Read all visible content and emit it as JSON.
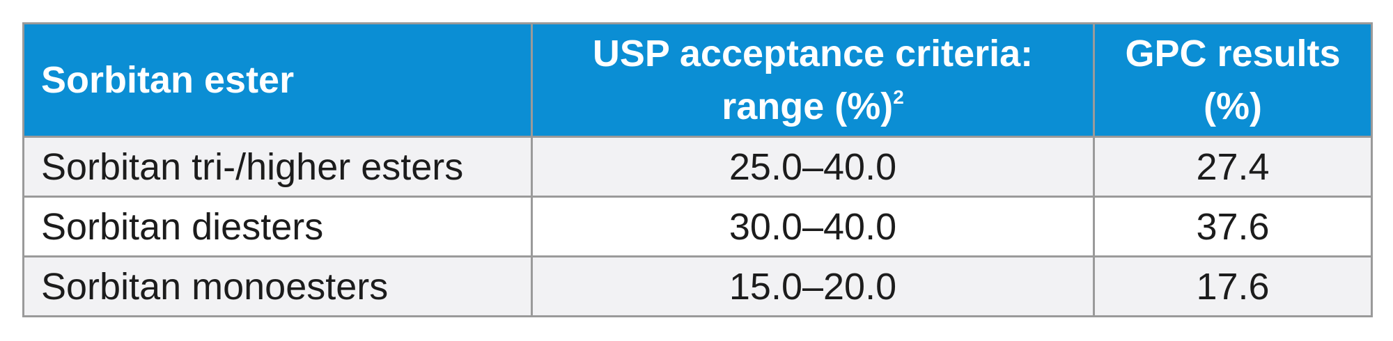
{
  "table": {
    "headers": [
      {
        "text": "Sorbitan ester",
        "sup": ""
      },
      {
        "text": "USP acceptance criteria: range (%)",
        "sup": "2"
      },
      {
        "text": "GPC results (%)",
        "sup": ""
      }
    ],
    "rows": [
      {
        "ester": "Sorbitan tri-/higher esters",
        "range": "25.0–40.0",
        "gpc": "27.4"
      },
      {
        "ester": "Sorbitan diesters",
        "range": "30.0–40.0",
        "gpc": "37.6"
      },
      {
        "ester": "Sorbitan monoesters",
        "range": "15.0–20.0",
        "gpc": "17.6"
      }
    ]
  },
  "colors": {
    "header_bg": "#0b8ed4",
    "header_text": "#ffffff",
    "row_shaded_bg": "#f2f2f4",
    "border": "#9a9a9a"
  }
}
